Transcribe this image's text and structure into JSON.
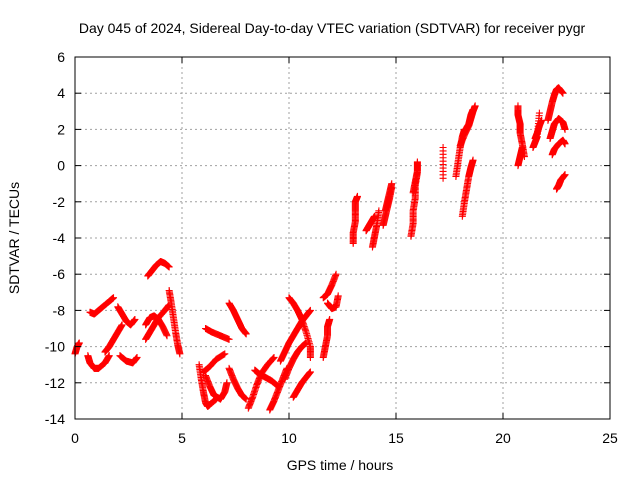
{
  "chart_data": {
    "type": "scatter",
    "title": "Day 045 of 2024, Sidereal Day-to-day VTEC variation (SDTVAR) for receiver pygr",
    "xlabel": "GPS time / hours",
    "ylabel": "SDTVAR / TECUs",
    "xlim": [
      0,
      25
    ],
    "ylim": [
      -14,
      6
    ],
    "xticks": [
      0,
      5,
      10,
      15,
      20,
      25
    ],
    "yticks": [
      -14,
      -12,
      -10,
      -8,
      -6,
      -4,
      -2,
      0,
      2,
      4,
      6
    ],
    "grid": true,
    "marker": "+",
    "color": "#ff0000",
    "series": [
      {
        "name": "arc1",
        "x": [
          0.0,
          0.1,
          0.2
        ],
        "y": [
          -10.4,
          -10.0,
          -9.8
        ]
      },
      {
        "name": "arc2",
        "x": [
          0.6,
          0.7,
          0.9,
          1.1,
          1.4,
          1.6
        ],
        "y": [
          -10.5,
          -10.9,
          -11.2,
          -11.2,
          -10.9,
          -10.5
        ]
      },
      {
        "name": "arc3",
        "x": [
          0.7,
          0.9,
          1.1,
          1.3,
          1.6,
          1.8
        ],
        "y": [
          -8.1,
          -8.2,
          -8.0,
          -7.8,
          -7.5,
          -7.3
        ]
      },
      {
        "name": "arc4",
        "x": [
          1.4,
          1.6,
          1.8,
          2.0,
          2.2
        ],
        "y": [
          -10.3,
          -10.0,
          -9.6,
          -9.2,
          -8.8
        ]
      },
      {
        "name": "arc5",
        "x": [
          2.0,
          2.2,
          2.4,
          2.6,
          2.8
        ],
        "y": [
          -7.8,
          -8.2,
          -8.6,
          -8.8,
          -8.5
        ]
      },
      {
        "name": "arc6",
        "x": [
          2.1,
          2.4,
          2.7,
          2.9
        ],
        "y": [
          -10.5,
          -10.8,
          -10.9,
          -10.6
        ]
      },
      {
        "name": "arc7",
        "x": [
          3.3,
          3.5,
          3.7,
          3.9,
          4.2,
          4.4
        ],
        "y": [
          -9.6,
          -9.2,
          -8.8,
          -8.4,
          -8.0,
          -7.7
        ]
      },
      {
        "name": "arc8",
        "x": [
          3.3,
          3.5,
          3.7,
          3.9,
          4.1,
          4.3
        ],
        "y": [
          -8.8,
          -8.4,
          -8.3,
          -8.5,
          -8.9,
          -9.4
        ]
      },
      {
        "name": "arc9",
        "x": [
          3.4,
          3.6,
          3.8,
          4.0,
          4.2,
          4.4
        ],
        "y": [
          -6.1,
          -5.8,
          -5.5,
          -5.3,
          -5.4,
          -5.6
        ]
      },
      {
        "name": "arc10",
        "x": [
          4.4,
          4.5,
          4.6,
          4.7,
          4.8,
          4.9
        ],
        "y": [
          -6.9,
          -7.6,
          -8.4,
          -9.2,
          -9.9,
          -10.4
        ]
      },
      {
        "name": "arc11",
        "x": [
          5.8,
          5.9,
          6.0,
          6.1,
          6.2,
          6.3,
          6.6
        ],
        "y": [
          -11.0,
          -11.8,
          -12.5,
          -13.1,
          -13.3,
          -13.2,
          -12.9
        ]
      },
      {
        "name": "arc12",
        "x": [
          6.1,
          6.3,
          6.5,
          6.8,
          7.0,
          7.1
        ],
        "y": [
          -11.6,
          -12.2,
          -12.7,
          -12.9,
          -12.5,
          -12.0
        ]
      },
      {
        "name": "arc13",
        "x": [
          6.0,
          6.3,
          6.6,
          7.0
        ],
        "y": [
          -11.4,
          -11.1,
          -10.7,
          -10.4
        ]
      },
      {
        "name": "arc14",
        "x": [
          6.1,
          6.4,
          6.8,
          7.2
        ],
        "y": [
          -9.0,
          -9.2,
          -9.4,
          -9.6
        ]
      },
      {
        "name": "arc15",
        "x": [
          7.2,
          7.4,
          7.6,
          7.8,
          8.0
        ],
        "y": [
          -7.6,
          -8.0,
          -8.5,
          -9.0,
          -9.3
        ]
      },
      {
        "name": "arc16",
        "x": [
          7.2,
          7.4,
          7.6,
          7.8,
          8.0
        ],
        "y": [
          -11.2,
          -11.8,
          -12.3,
          -12.7,
          -12.9
        ]
      },
      {
        "name": "arc17",
        "x": [
          8.1,
          8.3,
          8.5,
          8.7,
          9.0,
          9.3
        ],
        "y": [
          -13.4,
          -12.8,
          -12.1,
          -11.5,
          -11.0,
          -10.6
        ]
      },
      {
        "name": "arc18",
        "x": [
          8.4,
          8.6,
          8.9,
          9.2,
          9.5
        ],
        "y": [
          -11.3,
          -11.5,
          -11.7,
          -11.9,
          -12.2
        ]
      },
      {
        "name": "arc19",
        "x": [
          9.1,
          9.3,
          9.5,
          9.7,
          9.9
        ],
        "y": [
          -13.5,
          -13.0,
          -12.4,
          -11.8,
          -11.2
        ]
      },
      {
        "name": "arc20",
        "x": [
          9.6,
          9.8,
          10.0,
          10.2,
          10.4,
          10.6,
          10.8,
          11.0
        ],
        "y": [
          -10.8,
          -10.3,
          -9.8,
          -9.4,
          -9.0,
          -8.6,
          -8.3,
          -8.0
        ]
      },
      {
        "name": "arc21",
        "x": [
          9.8,
          10.0,
          10.2,
          10.4,
          10.6,
          10.8
        ],
        "y": [
          -11.8,
          -11.2,
          -10.7,
          -10.3,
          -10.0,
          -9.8
        ]
      },
      {
        "name": "arc22",
        "x": [
          10.0,
          10.2,
          10.4,
          10.6,
          10.8,
          11.0,
          11.0
        ],
        "y": [
          -7.3,
          -7.6,
          -8.0,
          -8.5,
          -9.2,
          -10.0,
          -10.6
        ]
      },
      {
        "name": "arc23",
        "x": [
          10.2,
          10.4,
          10.6,
          10.8,
          11.0
        ],
        "y": [
          -12.8,
          -12.4,
          -12.0,
          -11.7,
          -11.4
        ]
      },
      {
        "name": "arc24",
        "x": [
          11.6,
          11.7,
          11.8,
          11.8,
          11.9
        ],
        "y": [
          -10.6,
          -10.0,
          -9.4,
          -8.9,
          -8.5
        ]
      },
      {
        "name": "arc25",
        "x": [
          11.6,
          11.8,
          12.0,
          12.2
        ],
        "y": [
          -7.3,
          -7.1,
          -6.6,
          -6.0
        ]
      },
      {
        "name": "arc26",
        "x": [
          11.8,
          12.0,
          12.2,
          12.3
        ],
        "y": [
          -7.6,
          -7.9,
          -7.8,
          -7.2
        ]
      },
      {
        "name": "arc27",
        "x": [
          13.0,
          13.0,
          13.1,
          13.1,
          13.1,
          13.2
        ],
        "y": [
          -4.3,
          -3.7,
          -3.1,
          -2.5,
          -2.0,
          -1.7
        ]
      },
      {
        "name": "arc28",
        "x": [
          13.6,
          13.7,
          13.8,
          13.9,
          14.0
        ],
        "y": [
          -3.6,
          -3.4,
          -3.2,
          -3.0,
          -2.8
        ]
      },
      {
        "name": "arc29",
        "x": [
          13.9,
          14.0,
          14.1,
          14.2
        ],
        "y": [
          -4.5,
          -3.9,
          -3.3,
          -2.5
        ]
      },
      {
        "name": "arc30",
        "x": [
          14.4,
          14.5,
          14.6,
          14.7,
          14.8
        ],
        "y": [
          -3.3,
          -2.8,
          -2.3,
          -1.8,
          -1.2
        ]
      },
      {
        "name": "arc31",
        "x": [
          14.5,
          14.6,
          14.7,
          14.8
        ],
        "y": [
          -2.5,
          -2.0,
          -1.5,
          -1.0
        ]
      },
      {
        "name": "arc32",
        "x": [
          15.7,
          15.8,
          15.8,
          15.9,
          15.9,
          16.0
        ],
        "y": [
          -3.9,
          -3.2,
          -2.5,
          -1.8,
          -1.1,
          -0.4
        ]
      },
      {
        "name": "arc33",
        "x": [
          15.8,
          15.9,
          16.0,
          16.0
        ],
        "y": [
          -1.5,
          -0.9,
          -0.3,
          0.2
        ]
      },
      {
        "name": "arc34",
        "x": [
          17.2,
          17.2
        ],
        "y": [
          -0.7,
          1.0
        ]
      },
      {
        "name": "arc35",
        "x": [
          17.8,
          17.9,
          18.0,
          18.1,
          18.2
        ],
        "y": [
          -0.6,
          0.2,
          1.0,
          1.6,
          2.0
        ]
      },
      {
        "name": "arc36",
        "x": [
          18.1,
          18.2,
          18.3,
          18.4,
          18.5,
          18.6
        ],
        "y": [
          -2.8,
          -2.0,
          -1.3,
          -0.6,
          -0.1,
          0.3
        ]
      },
      {
        "name": "arc37",
        "x": [
          18.0,
          18.2,
          18.4,
          18.5,
          18.6,
          18.7
        ],
        "y": [
          1.1,
          1.7,
          2.2,
          2.6,
          3.0,
          3.3
        ]
      },
      {
        "name": "arc38",
        "x": [
          18.2,
          18.4,
          18.5,
          18.6
        ],
        "y": [
          1.9,
          2.3,
          2.8,
          3.1
        ]
      },
      {
        "name": "arc39",
        "x": [
          20.7,
          20.7,
          20.8,
          20.8,
          20.9,
          21.0
        ],
        "y": [
          3.3,
          2.8,
          2.3,
          1.8,
          1.2,
          0.5
        ]
      },
      {
        "name": "arc40",
        "x": [
          20.7,
          20.8,
          20.9
        ],
        "y": [
          0.0,
          0.5,
          1.0
        ]
      },
      {
        "name": "arc41",
        "x": [
          21.4,
          21.5,
          21.6,
          21.7
        ],
        "y": [
          1.0,
          1.3,
          1.6,
          2.9
        ]
      },
      {
        "name": "arc42",
        "x": [
          21.5,
          21.6,
          21.7,
          21.8
        ],
        "y": [
          1.5,
          1.8,
          2.2,
          2.5
        ]
      },
      {
        "name": "arc43",
        "x": [
          22.1,
          22.2,
          22.3,
          22.4,
          22.5,
          22.6,
          22.8
        ],
        "y": [
          2.5,
          3.0,
          3.5,
          3.9,
          4.2,
          4.3,
          4.0
        ]
      },
      {
        "name": "arc44",
        "x": [
          22.2,
          22.3,
          22.4,
          22.6,
          22.8,
          22.9
        ],
        "y": [
          1.5,
          1.9,
          2.3,
          2.6,
          2.4,
          2.0
        ]
      },
      {
        "name": "arc45",
        "x": [
          22.3,
          22.4,
          22.6,
          22.8,
          22.9
        ],
        "y": [
          0.6,
          0.9,
          1.2,
          1.4,
          1.2
        ]
      },
      {
        "name": "arc46",
        "x": [
          22.5,
          22.6,
          22.7,
          22.9
        ],
        "y": [
          -1.3,
          -1.1,
          -0.8,
          -0.5
        ]
      }
    ]
  }
}
